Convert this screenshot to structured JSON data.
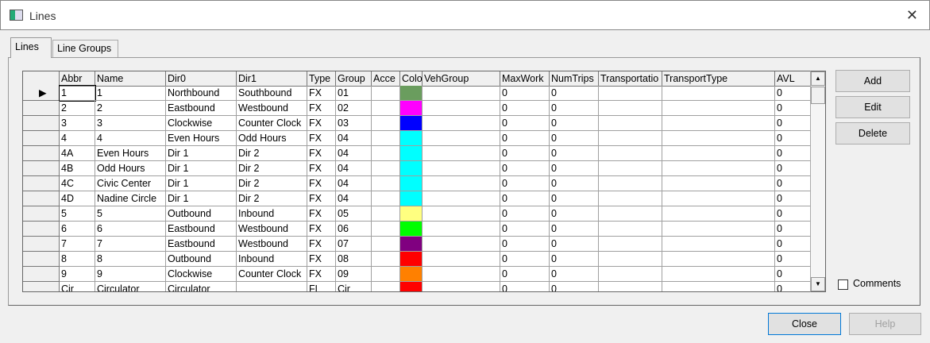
{
  "window": {
    "title": "Lines",
    "icon": "window-app-icon",
    "close_icon": "close-icon"
  },
  "tabs": [
    {
      "label": "Lines",
      "active": true
    },
    {
      "label": "Line Groups",
      "active": false
    }
  ],
  "grid": {
    "columns": [
      "Abbr",
      "Name",
      "Dir0",
      "Dir1",
      "Type",
      "Group",
      "Acce",
      "Colo",
      "VehGroup",
      "MaxWork",
      "NumTrips",
      "Transportatio",
      "TransportType",
      "AVL"
    ],
    "current_row": 0,
    "rows": [
      {
        "Abbr": "1",
        "Name": "1",
        "Dir0": "Northbound",
        "Dir1": "Southbound",
        "Type": "FX",
        "Group": "01",
        "Acce": "",
        "Color": "#6a9d5e",
        "VehGroup": "",
        "MaxWork": "0",
        "NumTrips": "0",
        "Transportatio": "",
        "TransportType": "",
        "AVL": "0"
      },
      {
        "Abbr": "2",
        "Name": "2",
        "Dir0": "Eastbound",
        "Dir1": "Westbound",
        "Type": "FX",
        "Group": "02",
        "Acce": "",
        "Color": "#ff00ff",
        "VehGroup": "",
        "MaxWork": "0",
        "NumTrips": "0",
        "Transportatio": "",
        "TransportType": "",
        "AVL": "0"
      },
      {
        "Abbr": "3",
        "Name": "3",
        "Dir0": "Clockwise",
        "Dir1": "Counter Clock",
        "Type": "FX",
        "Group": "03",
        "Acce": "",
        "Color": "#0000ff",
        "VehGroup": "",
        "MaxWork": "0",
        "NumTrips": "0",
        "Transportatio": "",
        "TransportType": "",
        "AVL": "0"
      },
      {
        "Abbr": "4",
        "Name": "4",
        "Dir0": "Even Hours",
        "Dir1": "Odd Hours",
        "Type": "FX",
        "Group": "04",
        "Acce": "",
        "Color": "#00ffff",
        "VehGroup": "",
        "MaxWork": "0",
        "NumTrips": "0",
        "Transportatio": "",
        "TransportType": "",
        "AVL": "0"
      },
      {
        "Abbr": "4A",
        "Name": "Even Hours",
        "Dir0": "Dir 1",
        "Dir1": "Dir 2",
        "Type": "FX",
        "Group": "04",
        "Acce": "",
        "Color": "#00ffff",
        "VehGroup": "",
        "MaxWork": "0",
        "NumTrips": "0",
        "Transportatio": "",
        "TransportType": "",
        "AVL": "0"
      },
      {
        "Abbr": "4B",
        "Name": "Odd Hours",
        "Dir0": "Dir 1",
        "Dir1": "Dir 2",
        "Type": "FX",
        "Group": "04",
        "Acce": "",
        "Color": "#00ffff",
        "VehGroup": "",
        "MaxWork": "0",
        "NumTrips": "0",
        "Transportatio": "",
        "TransportType": "",
        "AVL": "0"
      },
      {
        "Abbr": "4C",
        "Name": "Civic Center",
        "Dir0": "Dir 1",
        "Dir1": "Dir 2",
        "Type": "FX",
        "Group": "04",
        "Acce": "",
        "Color": "#00ffff",
        "VehGroup": "",
        "MaxWork": "0",
        "NumTrips": "0",
        "Transportatio": "",
        "TransportType": "",
        "AVL": "0"
      },
      {
        "Abbr": "4D",
        "Name": "Nadine Circle",
        "Dir0": "Dir 1",
        "Dir1": "Dir 2",
        "Type": "FX",
        "Group": "04",
        "Acce": "",
        "Color": "#00ffff",
        "VehGroup": "",
        "MaxWork": "0",
        "NumTrips": "0",
        "Transportatio": "",
        "TransportType": "",
        "AVL": "0"
      },
      {
        "Abbr": "5",
        "Name": "5",
        "Dir0": "Outbound",
        "Dir1": "Inbound",
        "Type": "FX",
        "Group": "05",
        "Acce": "",
        "Color": "#ffff80",
        "VehGroup": "",
        "MaxWork": "0",
        "NumTrips": "0",
        "Transportatio": "",
        "TransportType": "",
        "AVL": "0"
      },
      {
        "Abbr": "6",
        "Name": "6",
        "Dir0": "Eastbound",
        "Dir1": "Westbound",
        "Type": "FX",
        "Group": "06",
        "Acce": "",
        "Color": "#00ff00",
        "VehGroup": "",
        "MaxWork": "0",
        "NumTrips": "0",
        "Transportatio": "",
        "TransportType": "",
        "AVL": "0"
      },
      {
        "Abbr": "7",
        "Name": "7",
        "Dir0": "Eastbound",
        "Dir1": "Westbound",
        "Type": "FX",
        "Group": "07",
        "Acce": "",
        "Color": "#800080",
        "VehGroup": "",
        "MaxWork": "0",
        "NumTrips": "0",
        "Transportatio": "",
        "TransportType": "",
        "AVL": "0"
      },
      {
        "Abbr": "8",
        "Name": "8",
        "Dir0": "Outbound",
        "Dir1": "Inbound",
        "Type": "FX",
        "Group": "08",
        "Acce": "",
        "Color": "#ff0000",
        "VehGroup": "",
        "MaxWork": "0",
        "NumTrips": "0",
        "Transportatio": "",
        "TransportType": "",
        "AVL": "0"
      },
      {
        "Abbr": "9",
        "Name": "9",
        "Dir0": "Clockwise",
        "Dir1": "Counter Clock",
        "Type": "FX",
        "Group": "09",
        "Acce": "",
        "Color": "#ff8000",
        "VehGroup": "",
        "MaxWork": "0",
        "NumTrips": "0",
        "Transportatio": "",
        "TransportType": "",
        "AVL": "0"
      },
      {
        "Abbr": "Cir",
        "Name": "Circulator",
        "Dir0": "Circulator",
        "Dir1": "",
        "Type": "FL",
        "Group": "Cir",
        "Acce": "",
        "Color": "#ff0000",
        "VehGroup": "",
        "MaxWork": "0",
        "NumTrips": "0",
        "Transportatio": "",
        "TransportType": "",
        "AVL": "0"
      }
    ]
  },
  "buttons": {
    "add": "Add",
    "edit": "Edit",
    "delete": "Delete",
    "close": "Close",
    "help": "Help"
  },
  "comments": {
    "label": "Comments",
    "checked": false
  }
}
